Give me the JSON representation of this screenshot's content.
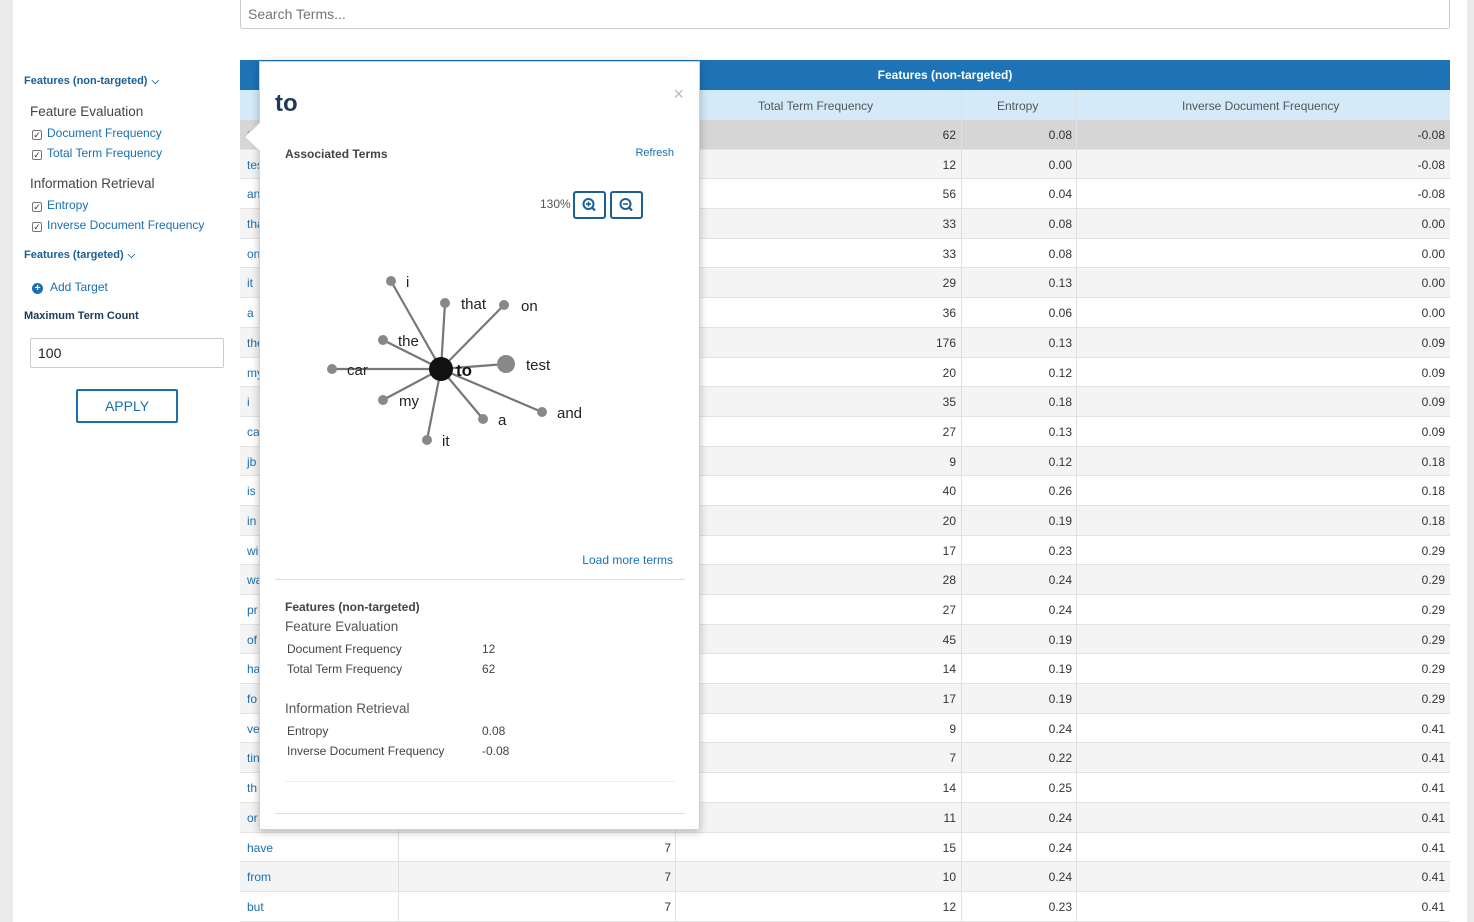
{
  "search": {
    "placeholder": "Search Terms..."
  },
  "sidebar": {
    "non_targeted_title": "Features (non-targeted)",
    "groups": [
      {
        "label": "Feature Evaluation",
        "items": [
          "Document Frequency",
          "Total Term Frequency"
        ]
      },
      {
        "label": "Information Retrieval",
        "items": [
          "Entropy",
          "Inverse Document Frequency"
        ]
      }
    ],
    "targeted_title": "Features (targeted)",
    "add_target": "Add Target",
    "max_count_label": "Maximum Term Count",
    "max_count_value": "100",
    "apply": "APPLY"
  },
  "table": {
    "header": "Features (non-targeted)",
    "columns": [
      "Total Term Frequency",
      "Entropy",
      "Inverse Document Frequency"
    ],
    "rows": [
      [
        "to",
        "",
        "62",
        "0.08",
        "-0.08"
      ],
      [
        "test",
        "",
        "12",
        "0.00",
        "-0.08"
      ],
      [
        "and",
        "",
        "56",
        "0.04",
        "-0.08"
      ],
      [
        "that",
        "",
        "33",
        "0.08",
        "0.00"
      ],
      [
        "on",
        "",
        "33",
        "0.08",
        "0.00"
      ],
      [
        "it",
        "",
        "29",
        "0.13",
        "0.00"
      ],
      [
        "a",
        "",
        "36",
        "0.06",
        "0.00"
      ],
      [
        "the",
        "",
        "176",
        "0.13",
        "0.09"
      ],
      [
        "my",
        "",
        "20",
        "0.12",
        "0.09"
      ],
      [
        "i",
        "",
        "35",
        "0.18",
        "0.09"
      ],
      [
        "car",
        "",
        "27",
        "0.13",
        "0.09"
      ],
      [
        "jb",
        "",
        "9",
        "0.12",
        "0.18"
      ],
      [
        "is",
        "",
        "40",
        "0.26",
        "0.18"
      ],
      [
        "in",
        "",
        "20",
        "0.19",
        "0.18"
      ],
      [
        "wi",
        "",
        "17",
        "0.23",
        "0.29"
      ],
      [
        "wa",
        "",
        "28",
        "0.24",
        "0.29"
      ],
      [
        "pr",
        "",
        "27",
        "0.24",
        "0.29"
      ],
      [
        "of",
        "",
        "45",
        "0.19",
        "0.29"
      ],
      [
        "ha",
        "",
        "14",
        "0.19",
        "0.29"
      ],
      [
        "fo",
        "",
        "17",
        "0.19",
        "0.29"
      ],
      [
        "ve",
        "",
        "9",
        "0.24",
        "0.41"
      ],
      [
        "tin",
        "",
        "7",
        "0.22",
        "0.41"
      ],
      [
        "th",
        "",
        "14",
        "0.25",
        "0.41"
      ],
      [
        "or",
        "",
        "11",
        "0.24",
        "0.41"
      ],
      [
        "have",
        "7",
        "15",
        "0.24",
        "0.41"
      ],
      [
        "from",
        "7",
        "10",
        "0.24",
        "0.41"
      ],
      [
        "but",
        "7",
        "12",
        "0.23",
        "0.41"
      ]
    ]
  },
  "popup": {
    "term": "to",
    "close": "×",
    "associated_terms": "Associated Terms",
    "refresh": "Refresh",
    "zoom": "130%",
    "graph_center": "to",
    "graph_terms": [
      "i",
      "that",
      "on",
      "the",
      "test",
      "car",
      "my",
      "a",
      "and",
      "it"
    ],
    "load_more": "Load more terms",
    "details_title": "Features (non-targeted)",
    "details": [
      {
        "group": "Feature Evaluation",
        "rows": [
          [
            "Document Frequency",
            "12"
          ],
          [
            "Total Term Frequency",
            "62"
          ]
        ]
      },
      {
        "group": "Information Retrieval",
        "rows": [
          [
            "Entropy",
            "0.08"
          ],
          [
            "Inverse Document Frequency",
            "-0.08"
          ]
        ]
      }
    ]
  }
}
